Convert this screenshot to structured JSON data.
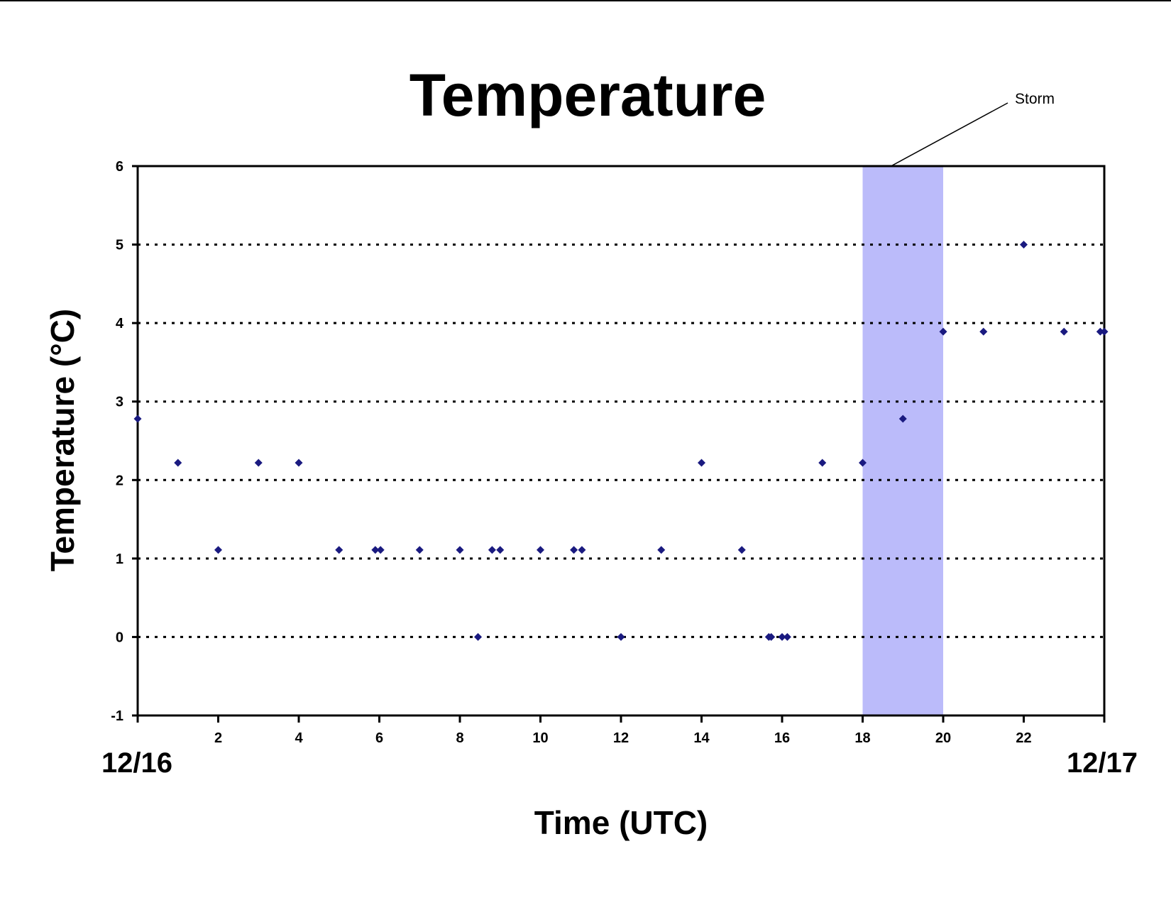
{
  "colors": {
    "marker": "#1a1a80",
    "storm_band": "#bbbbfa",
    "grid": "#000000",
    "frame": "#000000"
  },
  "chart_data": {
    "type": "scatter",
    "title": "Temperature",
    "xlabel": "Time (UTC)",
    "ylabel": "Temperature (°C)",
    "xlim": [
      0,
      24
    ],
    "ylim": [
      -1,
      6
    ],
    "x_ticks": [
      2,
      4,
      6,
      8,
      10,
      12,
      14,
      16,
      18,
      20,
      22
    ],
    "y_ticks": [
      -1,
      0,
      1,
      2,
      3,
      4,
      5,
      6
    ],
    "grid": "horizontal dotted",
    "date_labels": {
      "start": "12/16",
      "end": "12/17"
    },
    "annotation": {
      "text": "Storm",
      "x_start": 18,
      "x_end": 20
    },
    "series": [
      {
        "points": [
          [
            0,
            2.78
          ],
          [
            1,
            2.22
          ],
          [
            2,
            1.11
          ],
          [
            3,
            2.22
          ],
          [
            4,
            2.22
          ],
          [
            5,
            1.11
          ],
          [
            5.9,
            1.11
          ],
          [
            6.03,
            1.11
          ],
          [
            7,
            1.11
          ],
          [
            8,
            1.11
          ],
          [
            8.45,
            0
          ],
          [
            8.8,
            1.11
          ],
          [
            9,
            1.11
          ],
          [
            10,
            1.11
          ],
          [
            10.83,
            1.11
          ],
          [
            11.03,
            1.11
          ],
          [
            12,
            0
          ],
          [
            13,
            1.11
          ],
          [
            14,
            2.22
          ],
          [
            15,
            1.11
          ],
          [
            15.67,
            0
          ],
          [
            15.73,
            0
          ],
          [
            16,
            0
          ],
          [
            16.13,
            0
          ],
          [
            17,
            2.22
          ],
          [
            18,
            2.22
          ],
          [
            19,
            2.78
          ],
          [
            20,
            3.89
          ],
          [
            21,
            3.89
          ],
          [
            22,
            5
          ],
          [
            23,
            3.89
          ],
          [
            23.9,
            3.89
          ],
          [
            24,
            3.89
          ]
        ]
      }
    ]
  }
}
